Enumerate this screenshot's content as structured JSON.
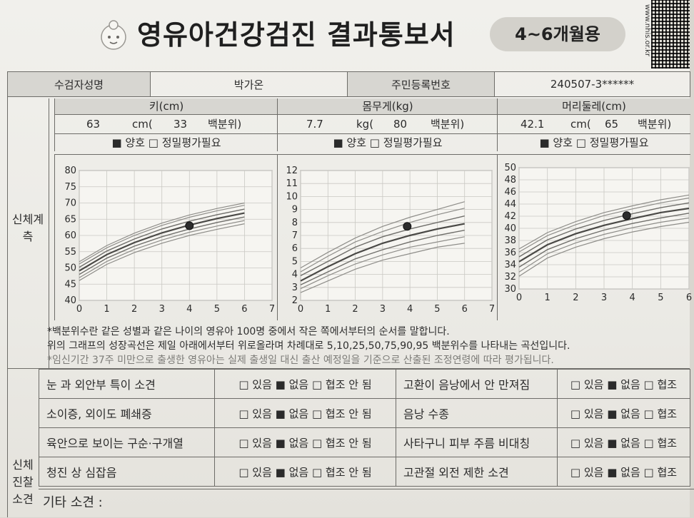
{
  "header": {
    "title": "영유아건강검진 결과통보서",
    "age_badge": "4~6개월용",
    "url_text": "www.nhis.or.kr"
  },
  "info_row": {
    "name_label": "수검자성명",
    "name_value": "박가온",
    "id_label": "주민등록번호",
    "id_value": "240507-3******"
  },
  "body_measure_label": "신체계측",
  "measurements": [
    {
      "label": "키(cm)",
      "value": "63",
      "unit": "cm(",
      "percentile": "33",
      "pct_label": "백분위)",
      "status": "■ 양호 □ 정밀평가필요"
    },
    {
      "label": "몸무게(kg)",
      "value": "7.7",
      "unit": "kg(",
      "percentile": "80",
      "pct_label": "백분위)",
      "status": "■ 양호 □ 정밀평가필요"
    },
    {
      "label": "머리둘레(cm)",
      "value": "42.1",
      "unit": "cm(",
      "percentile": "65",
      "pct_label": "백분위)",
      "status": "■ 양호 □ 정밀평가필요"
    }
  ],
  "chart_data": [
    {
      "type": "line",
      "title": "",
      "xlabel": "",
      "ylabel": "",
      "xlim": [
        0,
        7
      ],
      "ylim": [
        40,
        80
      ],
      "x_ticks": [
        0,
        1,
        2,
        3,
        4,
        5,
        6,
        7
      ],
      "y_ticks": [
        40,
        45,
        50,
        55,
        60,
        65,
        70,
        75,
        80
      ],
      "grid": true,
      "x": [
        0,
        1,
        2,
        3,
        4,
        5,
        6
      ],
      "series": [
        {
          "values": [
            46.1,
            51.1,
            54.7,
            57.6,
            60.0,
            61.9,
            63.6
          ]
        },
        {
          "values": [
            47.0,
            52.0,
            55.7,
            58.6,
            61.0,
            62.9,
            64.6
          ]
        },
        {
          "values": [
            48.0,
            53.0,
            56.7,
            59.6,
            62.0,
            64.0,
            65.7
          ]
        },
        {
          "values": [
            49.1,
            54.1,
            57.8,
            60.8,
            63.2,
            65.2,
            66.9
          ]
        },
        {
          "values": [
            50.2,
            55.2,
            58.9,
            62.0,
            64.4,
            66.4,
            68.1
          ]
        },
        {
          "values": [
            51.2,
            56.2,
            60.0,
            63.1,
            65.6,
            67.6,
            69.3
          ]
        },
        {
          "values": [
            51.9,
            56.9,
            60.7,
            63.8,
            66.3,
            68.3,
            70.0
          ]
        }
      ],
      "point": {
        "x": 4,
        "y": 63
      }
    },
    {
      "type": "line",
      "title": "",
      "xlabel": "",
      "ylabel": "",
      "xlim": [
        0,
        7
      ],
      "ylim": [
        2,
        12
      ],
      "x_ticks": [
        0,
        1,
        2,
        3,
        4,
        5,
        6,
        7
      ],
      "y_ticks": [
        2,
        3,
        4,
        5,
        6,
        7,
        8,
        9,
        10,
        11,
        12
      ],
      "grid": true,
      "x": [
        0,
        1,
        2,
        3,
        4,
        5,
        6
      ],
      "series": [
        {
          "values": [
            2.6,
            3.5,
            4.4,
            5.1,
            5.6,
            6.1,
            6.4
          ]
        },
        {
          "values": [
            2.9,
            3.9,
            4.8,
            5.5,
            6.1,
            6.5,
            6.9
          ]
        },
        {
          "values": [
            3.2,
            4.2,
            5.2,
            5.9,
            6.5,
            7.0,
            7.4
          ]
        },
        {
          "values": [
            3.5,
            4.6,
            5.6,
            6.4,
            7.0,
            7.5,
            7.9
          ]
        },
        {
          "values": [
            3.9,
            5.0,
            6.1,
            6.9,
            7.5,
            8.0,
            8.5
          ]
        },
        {
          "values": [
            4.2,
            5.4,
            6.5,
            7.3,
            8.0,
            8.6,
            9.1
          ]
        },
        {
          "values": [
            4.5,
            5.7,
            6.8,
            7.7,
            8.4,
            9.0,
            9.6
          ]
        }
      ],
      "point": {
        "x": 3.9,
        "y": 7.7
      }
    },
    {
      "type": "line",
      "title": "",
      "xlabel": "",
      "ylabel": "",
      "xlim": [
        0,
        6
      ],
      "ylim": [
        30,
        50
      ],
      "x_ticks": [
        0,
        1,
        2,
        3,
        4,
        5,
        6
      ],
      "y_ticks": [
        30,
        32,
        34,
        36,
        38,
        40,
        42,
        44,
        46,
        48,
        50
      ],
      "grid": true,
      "x": [
        0,
        1,
        2,
        3,
        4,
        5,
        6
      ],
      "series": [
        {
          "values": [
            32.1,
            35.1,
            36.9,
            38.3,
            39.4,
            40.3,
            41.0
          ]
        },
        {
          "values": [
            32.8,
            35.8,
            37.6,
            39.0,
            40.1,
            41.0,
            41.7
          ]
        },
        {
          "values": [
            33.6,
            36.5,
            38.3,
            39.7,
            40.8,
            41.7,
            42.5
          ]
        },
        {
          "values": [
            34.5,
            37.3,
            39.1,
            40.5,
            41.6,
            42.6,
            43.3
          ]
        },
        {
          "values": [
            35.3,
            38.1,
            39.9,
            41.3,
            42.4,
            43.4,
            44.2
          ]
        },
        {
          "values": [
            36.1,
            38.8,
            40.6,
            42.1,
            43.2,
            44.2,
            45.0
          ]
        },
        {
          "values": [
            36.6,
            39.3,
            41.1,
            42.6,
            43.7,
            44.7,
            45.5
          ]
        }
      ],
      "point": {
        "x": 3.8,
        "y": 42.1
      }
    }
  ],
  "notes": {
    "line1": "*백분위수란 같은 성별과 같은 나이의 영유아 100명 중에서 작은 쪽에서부터의 순서를 말합니다.",
    "line2": "위의 그래프의 성장곡선은 제일 아래에서부터 위로올라며 차례대로 5,10,25,50,75,90,95 백분위수를 나타내는 곡선입니다.",
    "line3": "*임신기간 37주 미만으로 출생한 영유아는 실제 출생일 대신 출산 예정일을 기준으로 산출된 조정연령에 따라 평가됩니다."
  },
  "exam_label": "신체진찰소견",
  "findings": [
    {
      "left_label": "눈 과 외안부 특이 소견",
      "left_opts": "□ 있음 ■ 없음 □ 협조 안 됨",
      "right_label": "고환이 음낭에서 안 만져짐",
      "right_opts": "□ 있음 ■ 없음 □ 협조"
    },
    {
      "left_label": "소이증, 외이도 폐쇄증",
      "left_opts": "□ 있음 ■ 없음 □ 협조 안 됨",
      "right_label": "음낭 수종",
      "right_opts": "□ 있음 ■ 없음 □ 협조"
    },
    {
      "left_label": "육안으로 보이는 구순·구개열",
      "left_opts": "□ 있음 ■ 없음 □ 협조 안 됨",
      "right_label": "사타구니 피부 주름 비대칭",
      "right_opts": "□ 있음 ■ 없음 □ 협조"
    },
    {
      "left_label": "청진 상 심잡음",
      "left_opts": "□ 있음 ■ 없음 □ 협조 안 됨",
      "right_label": "고관절 외전 제한 소견",
      "right_opts": "□ 있음 ■ 없음 □ 협조"
    }
  ],
  "etc_label": "기타 소견 :"
}
